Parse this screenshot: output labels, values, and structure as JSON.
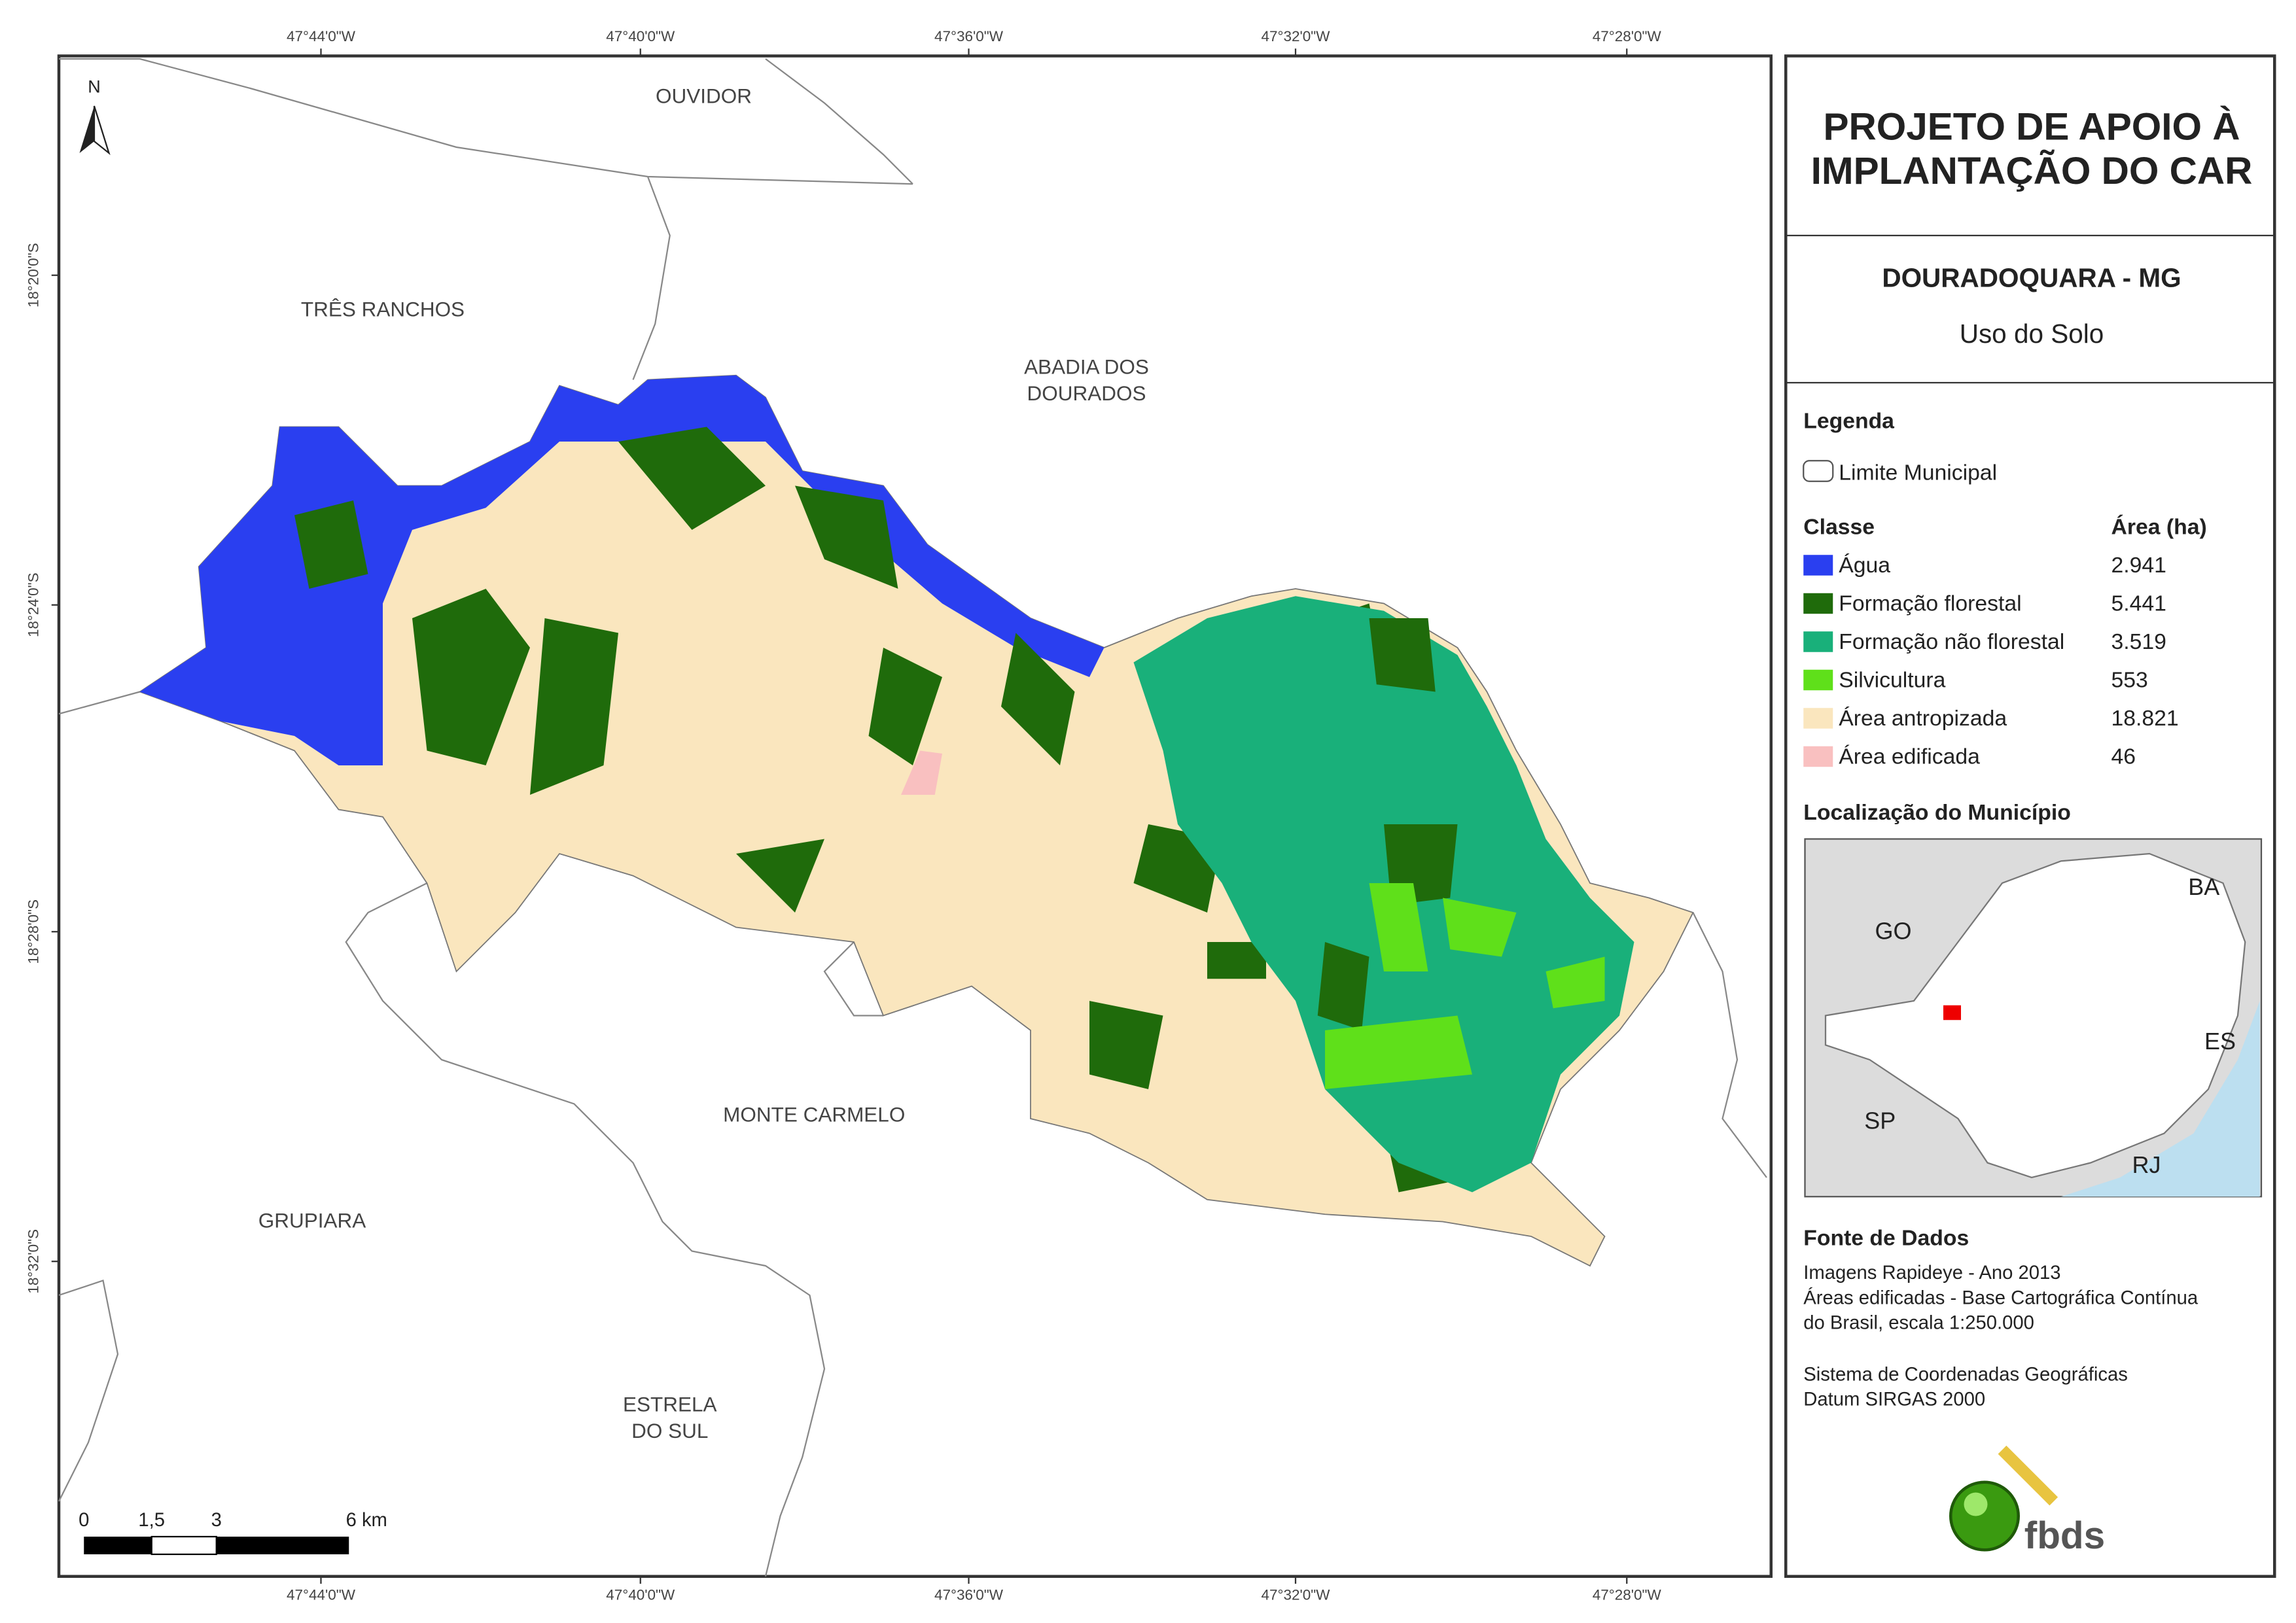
{
  "map": {
    "top_coordinates": [
      "47°44'0\"W",
      "47°40'0\"W",
      "47°36'0\"W",
      "47°32'0\"W",
      "47°28'0\"W"
    ],
    "bottom_coordinates": [
      "47°44'0\"W",
      "47°40'0\"W",
      "47°36'0\"W",
      "47°32'0\"W",
      "47°28'0\"W"
    ],
    "left_coordinates": [
      "18°20'0\"S",
      "18°24'0\"S",
      "18°28'0\"S",
      "18°32'0\"S"
    ],
    "north_label": "N",
    "places": [
      [
        "OUVIDOR"
      ],
      [
        "TRÊS RANCHOS"
      ],
      [
        "ABADIA DOS",
        "DOURADOS"
      ],
      [
        "MONTE CARMELO"
      ],
      [
        "GRUPIARA"
      ],
      [
        "ESTRELA",
        "DO SUL"
      ]
    ],
    "scale_bar": [
      "0",
      "1,5",
      "3",
      "6 km"
    ]
  },
  "panel": {
    "title": [
      "PROJETO DE APOIO À",
      "IMPLANTAÇÃO DO CAR"
    ],
    "municipality": "DOURADOQUARA - MG",
    "subtitle": "Uso do Solo",
    "legend_title": "Legenda",
    "boundary_label": "Limite Municipal",
    "class_header": "Classe",
    "area_header": "Área (ha)",
    "classes": [
      {
        "name": "Água",
        "area": "2.941",
        "color": "#2a3ff0"
      },
      {
        "name": "Formação florestal",
        "area": "5.441",
        "color": "#1f6b0b"
      },
      {
        "name": "Formação não florestal",
        "area": "3.519",
        "color": "#19b07a"
      },
      {
        "name": "Silvicultura",
        "area": "553",
        "color": "#5fe01a"
      },
      {
        "name": "Área antropizada",
        "area": "18.821",
        "color": "#fae6be"
      },
      {
        "name": "Área edificada",
        "area": "46",
        "color": "#f9c0c0"
      }
    ],
    "location_title": "Localização do Município",
    "location_labels": [
      "BA",
      "GO",
      "ES",
      "SP",
      "RJ"
    ],
    "sources_title": "Fonte de Dados",
    "sources": [
      "Imagens Rapideye - Ano 2013",
      "Áreas edificadas - Base Cartográfica Contínua",
      "do Brasil, escala 1:250.000",
      "Sistema de Coordenadas Geográficas",
      "Datum SIRGAS 2000"
    ],
    "logo": "fbds"
  }
}
